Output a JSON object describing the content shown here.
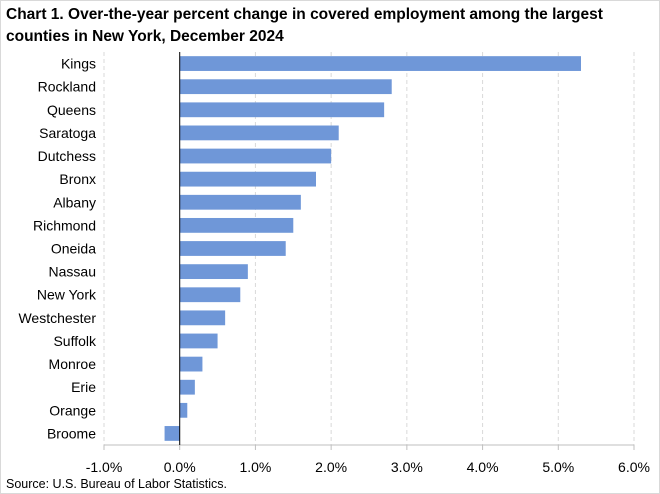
{
  "chart_data": {
    "type": "bar",
    "orientation": "horizontal",
    "title": "Chart 1. Over-the-year percent change in covered employment among the largest counties in New York, December 2024",
    "categories": [
      "Kings",
      "Rockland",
      "Queens",
      "Saratoga",
      "Dutchess",
      "Bronx",
      "Albany",
      "Richmond",
      "Oneida",
      "Nassau",
      "New York",
      "Westchester",
      "Suffolk",
      "Monroe",
      "Erie",
      "Orange",
      "Broome"
    ],
    "values": [
      5.3,
      2.8,
      2.7,
      2.1,
      2.0,
      1.8,
      1.6,
      1.5,
      1.4,
      0.9,
      0.8,
      0.6,
      0.5,
      0.3,
      0.2,
      0.1,
      -0.2
    ],
    "xlim": [
      -1.0,
      6.0
    ],
    "xticks": [
      -1.0,
      0.0,
      1.0,
      2.0,
      3.0,
      4.0,
      5.0,
      6.0
    ],
    "xtick_labels": [
      "-1.0%",
      "0.0%",
      "1.0%",
      "2.0%",
      "3.0%",
      "4.0%",
      "5.0%",
      "6.0%"
    ],
    "grid": "vertical dashed",
    "bar_color": "#6f97d8",
    "source": "Source: U.S. Bureau of Labor Statistics."
  }
}
